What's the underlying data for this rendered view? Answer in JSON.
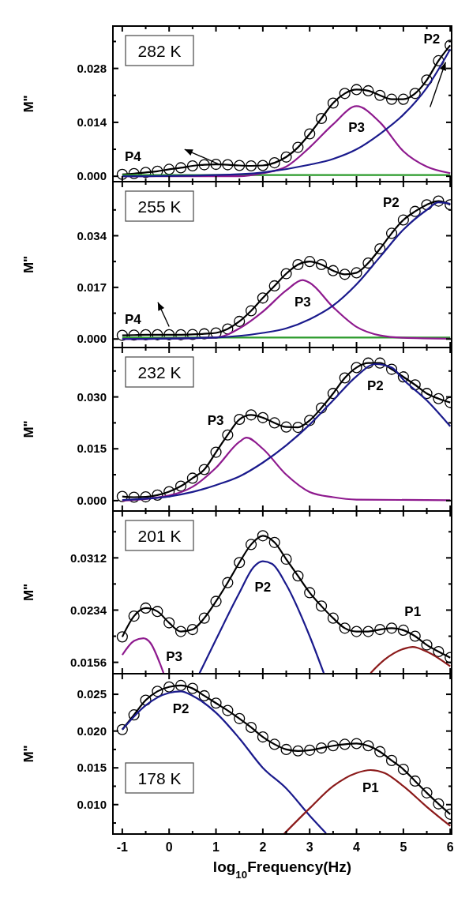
{
  "chart_data": [
    {
      "type": "line",
      "title": "282 K",
      "ylabel": "M\"",
      "xlim": [
        -1.2,
        6.03
      ],
      "ylim": [
        -0.0014,
        0.039
      ],
      "tick_labels": "y",
      "xticks": [
        -1,
        {
          "value": -0.5,
          "label": null
        },
        0,
        {
          "value": 0.5,
          "label": null
        },
        1,
        {
          "value": 1.5,
          "label": null
        },
        2,
        {
          "value": 2.5,
          "label": null
        },
        3,
        {
          "value": 3.5,
          "label": null
        },
        4,
        {
          "value": 4.5,
          "label": null
        },
        5,
        {
          "value": 5.5,
          "label": null
        },
        6
      ],
      "yticks": [
        {
          "value": 0,
          "label": "0.000"
        },
        {
          "value": 0.007,
          "label": null
        },
        {
          "value": 0.014,
          "label": "0.014"
        },
        {
          "value": 0.021,
          "label": null
        },
        {
          "value": 0.028,
          "label": "0.028"
        },
        {
          "value": 0.035,
          "label": null
        }
      ],
      "x": [
        -1,
        -0.75,
        -0.5,
        -0.25,
        0,
        0.25,
        0.5,
        0.75,
        1,
        1.25,
        1.5,
        1.75,
        2,
        2.25,
        2.5,
        2.75,
        3,
        3.25,
        3.5,
        3.75,
        4,
        4.25,
        4.5,
        4.75,
        5,
        5.25,
        5.5,
        5.75,
        6
      ],
      "series": [
        {
          "type": "scatter",
          "marker": "circle",
          "color": "#000000",
          "values": [
            0.0005,
            0.0007,
            0.001,
            0.0013,
            0.0018,
            0.0022,
            0.0027,
            0.003,
            0.0031,
            0.003,
            0.0028,
            0.0027,
            0.0028,
            0.0035,
            0.005,
            0.0075,
            0.011,
            0.015,
            0.019,
            0.0215,
            0.0225,
            0.0222,
            0.021,
            0.02,
            0.02,
            0.0215,
            0.025,
            0.03,
            0.034
          ]
        },
        {
          "color": "#000000",
          "values": [
            0.0005,
            0.0007,
            0.001,
            0.0013,
            0.0018,
            0.0022,
            0.0027,
            0.003,
            0.0031,
            0.003,
            0.0028,
            0.0027,
            0.0028,
            0.0035,
            0.005,
            0.0075,
            0.011,
            0.015,
            0.019,
            0.0215,
            0.0225,
            0.0222,
            0.021,
            0.02,
            0.02,
            0.0215,
            0.025,
            0.03,
            0.034
          ]
        },
        {
          "name": "P4",
          "color": "#2a9a2a",
          "x": [
            -1,
            6
          ],
          "values": [
            0.0003,
            0.0003
          ]
        },
        {
          "name": "P3",
          "color": "#8e1a8e",
          "x": [
            -1,
            1.5,
            2,
            2.5,
            3,
            3.5,
            4,
            4.5,
            5,
            5.5,
            6
          ],
          "values": [
            0,
            0,
            0.0008,
            0.0025,
            0.0075,
            0.0135,
            0.0182,
            0.014,
            0.0065,
            0.0025,
            0.0008
          ]
        },
        {
          "name": "P2",
          "color": "#1a1a8c",
          "x": [
            -1,
            1,
            2,
            3,
            3.5,
            4,
            4.5,
            5,
            5.5,
            6
          ],
          "values": [
            0,
            0.0003,
            0.001,
            0.003,
            0.0045,
            0.007,
            0.011,
            0.016,
            0.023,
            0.033
          ]
        }
      ]
    },
    {
      "type": "line",
      "title": "255 K",
      "ylabel": "M\"",
      "xlim": [
        -1.2,
        6.03
      ],
      "ylim": [
        -0.0028,
        0.0518
      ],
      "tick_labels": "y",
      "xticks": [
        -1,
        {
          "value": -0.5,
          "label": null
        },
        0,
        {
          "value": 0.5,
          "label": null
        },
        1,
        {
          "value": 1.5,
          "label": null
        },
        2,
        {
          "value": 2.5,
          "label": null
        },
        3,
        {
          "value": 3.5,
          "label": null
        },
        4,
        {
          "value": 4.5,
          "label": null
        },
        5,
        {
          "value": 5.5,
          "label": null
        },
        6
      ],
      "yticks": [
        {
          "value": 0,
          "label": "0.000"
        },
        {
          "value": 0.0085,
          "label": null
        },
        {
          "value": 0.017,
          "label": "0.017"
        },
        {
          "value": 0.0255,
          "label": null
        },
        {
          "value": 0.034,
          "label": "0.034"
        },
        {
          "value": 0.0425,
          "label": null
        }
      ],
      "x": [
        -1,
        -0.75,
        -0.5,
        -0.25,
        0,
        0.25,
        0.5,
        0.75,
        1,
        1.25,
        1.5,
        1.75,
        2,
        2.25,
        2.5,
        2.75,
        3,
        3.25,
        3.5,
        3.75,
        4,
        4.25,
        4.5,
        4.75,
        5,
        5.25,
        5.5,
        5.75,
        6
      ],
      "series": [
        {
          "type": "scatter",
          "marker": "circle",
          "color": "#000000",
          "values": [
            0.0012,
            0.0013,
            0.0014,
            0.0014,
            0.0014,
            0.0014,
            0.0015,
            0.0017,
            0.002,
            0.0033,
            0.0058,
            0.0093,
            0.0135,
            0.0175,
            0.0215,
            0.0245,
            0.0255,
            0.0245,
            0.0225,
            0.0213,
            0.0218,
            0.025,
            0.0297,
            0.0348,
            0.0392,
            0.042,
            0.0442,
            0.0454,
            0.0442
          ]
        },
        {
          "color": "#000000",
          "values": [
            0.0012,
            0.0013,
            0.0014,
            0.0014,
            0.0014,
            0.0014,
            0.0015,
            0.0017,
            0.002,
            0.0033,
            0.0058,
            0.0093,
            0.0135,
            0.0175,
            0.0215,
            0.0245,
            0.0255,
            0.0245,
            0.0225,
            0.0213,
            0.0218,
            0.025,
            0.0297,
            0.0348,
            0.0392,
            0.042,
            0.0442,
            0.0454,
            0.0442
          ]
        },
        {
          "name": "P4",
          "color": "#2a9a2a",
          "x": [
            -1,
            6
          ],
          "values": [
            0.0005,
            0.0005
          ]
        },
        {
          "name": "P3",
          "color": "#8e1a8e",
          "x": [
            -1,
            1,
            1.5,
            2,
            2.5,
            2.85,
            3,
            3.5,
            4,
            4.5,
            5,
            6
          ],
          "values": [
            0,
            0.0005,
            0.0035,
            0.009,
            0.016,
            0.0194,
            0.0185,
            0.0105,
            0.004,
            0.0012,
            0.0004,
            0.0001
          ]
        },
        {
          "name": "P2",
          "color": "#1a1a8c",
          "x": [
            -1,
            1,
            2,
            2.5,
            3,
            3.5,
            4,
            4.5,
            5,
            5.5,
            5.75,
            6
          ],
          "values": [
            0,
            0.0005,
            0.002,
            0.0035,
            0.0065,
            0.011,
            0.018,
            0.027,
            0.036,
            0.0425,
            0.045,
            0.0445
          ]
        }
      ]
    },
    {
      "type": "line",
      "title": "232 K",
      "ylabel": "M\"",
      "xlim": [
        -1.2,
        6.03
      ],
      "ylim": [
        -0.003,
        0.0443
      ],
      "tick_labels": "y",
      "xticks": [
        -1,
        {
          "value": -0.5,
          "label": null
        },
        0,
        {
          "value": 0.5,
          "label": null
        },
        1,
        {
          "value": 1.5,
          "label": null
        },
        2,
        {
          "value": 2.5,
          "label": null
        },
        3,
        {
          "value": 3.5,
          "label": null
        },
        4,
        {
          "value": 4.5,
          "label": null
        },
        5,
        {
          "value": 5.5,
          "label": null
        },
        6
      ],
      "yticks": [
        {
          "value": 0,
          "label": "0.000"
        },
        {
          "value": 0.0075,
          "label": null
        },
        {
          "value": 0.015,
          "label": "0.015"
        },
        {
          "value": 0.0225,
          "label": null
        },
        {
          "value": 0.03,
          "label": "0.030"
        },
        {
          "value": 0.0375,
          "label": null
        }
      ],
      "x": [
        -1,
        -0.75,
        -0.5,
        -0.25,
        0,
        0.25,
        0.5,
        0.75,
        1,
        1.25,
        1.5,
        1.75,
        2,
        2.25,
        2.5,
        2.75,
        3,
        3.25,
        3.5,
        3.75,
        4,
        4.25,
        4.5,
        4.75,
        5,
        5.25,
        5.5,
        5.75,
        6
      ],
      "series": [
        {
          "type": "scatter",
          "marker": "circle",
          "color": "#000000",
          "values": [
            0.0012,
            0.001,
            0.0011,
            0.0016,
            0.0026,
            0.0042,
            0.0065,
            0.009,
            0.014,
            0.019,
            0.0235,
            0.0248,
            0.024,
            0.0225,
            0.0213,
            0.0212,
            0.0232,
            0.0268,
            0.031,
            0.0355,
            0.0385,
            0.0398,
            0.0398,
            0.038,
            0.0358,
            0.0335,
            0.031,
            0.0295,
            0.0284
          ]
        },
        {
          "color": "#000000",
          "values": [
            0.0012,
            0.001,
            0.0011,
            0.0016,
            0.0026,
            0.0042,
            0.0065,
            0.009,
            0.014,
            0.019,
            0.0235,
            0.0248,
            0.024,
            0.0225,
            0.0213,
            0.0212,
            0.0232,
            0.0268,
            0.031,
            0.0355,
            0.0385,
            0.0398,
            0.0398,
            0.038,
            0.0358,
            0.0335,
            0.031,
            0.0295,
            0.0284
          ]
        },
        {
          "name": "P3",
          "color": "#8e1a8e",
          "x": [
            -1,
            0,
            0.5,
            1,
            1.5,
            1.65,
            2,
            2.5,
            3,
            3.5,
            4,
            6
          ],
          "values": [
            0,
            0.0015,
            0.004,
            0.0095,
            0.017,
            0.0182,
            0.015,
            0.0075,
            0.0025,
            0.001,
            0.0003,
            0.0001
          ]
        },
        {
          "name": "P2",
          "color": "#1a1a8c",
          "x": [
            -1,
            0,
            0.5,
            1,
            1.5,
            2,
            2.5,
            3,
            3.5,
            4,
            4.4,
            4.75,
            5,
            5.5,
            6
          ],
          "values": [
            0.0002,
            0.0012,
            0.0025,
            0.0045,
            0.007,
            0.011,
            0.016,
            0.022,
            0.029,
            0.036,
            0.0395,
            0.0385,
            0.035,
            0.029,
            0.0215
          ]
        }
      ]
    },
    {
      "type": "line",
      "title": "201 K",
      "ylabel": "M\"",
      "xlim": [
        -1.2,
        6.03
      ],
      "ylim": [
        0.0139,
        0.0382
      ],
      "tick_labels": "y",
      "xticks": [
        -1,
        {
          "value": -0.5,
          "label": null
        },
        0,
        {
          "value": 0.5,
          "label": null
        },
        1,
        {
          "value": 1.5,
          "label": null
        },
        2,
        {
          "value": 2.5,
          "label": null
        },
        3,
        {
          "value": 3.5,
          "label": null
        },
        4,
        {
          "value": 4.5,
          "label": null
        },
        5,
        {
          "value": 5.5,
          "label": null
        },
        6
      ],
      "yticks": [
        {
          "value": 0.0156,
          "label": "0.0156"
        },
        {
          "value": 0.0195,
          "label": null
        },
        {
          "value": 0.0234,
          "label": "0.0234"
        },
        {
          "value": 0.0273,
          "label": null
        },
        {
          "value": 0.0312,
          "label": "0.0312"
        },
        {
          "value": 0.0351,
          "label": null
        }
      ],
      "x": [
        -1,
        -0.75,
        -0.5,
        -0.25,
        0,
        0.25,
        0.5,
        0.75,
        1,
        1.25,
        1.5,
        1.75,
        2,
        2.25,
        2.5,
        2.75,
        3,
        3.25,
        3.5,
        3.75,
        4,
        4.25,
        4.5,
        4.75,
        5,
        5.25,
        5.5,
        5.75,
        6
      ],
      "series": [
        {
          "type": "scatter",
          "marker": "circle",
          "color": "#000000",
          "values": [
            0.0194,
            0.0225,
            0.0237,
            0.0232,
            0.0215,
            0.0202,
            0.0205,
            0.0222,
            0.0247,
            0.0275,
            0.0305,
            0.0332,
            0.0345,
            0.0335,
            0.031,
            0.0285,
            0.026,
            0.024,
            0.0222,
            0.0207,
            0.0202,
            0.0202,
            0.0205,
            0.0207,
            0.0204,
            0.0195,
            0.0182,
            0.0172,
            0.0163
          ]
        },
        {
          "color": "#000000",
          "values": [
            0.0194,
            0.0225,
            0.0237,
            0.0232,
            0.0215,
            0.0202,
            0.0205,
            0.0222,
            0.0247,
            0.0275,
            0.0305,
            0.0332,
            0.0345,
            0.0335,
            0.031,
            0.0285,
            0.026,
            0.024,
            0.0222,
            0.0207,
            0.0202,
            0.0202,
            0.0205,
            0.0207,
            0.0204,
            0.0195,
            0.0182,
            0.0172,
            0.0163
          ]
        },
        {
          "name": "P3",
          "color": "#8e1a8e",
          "x": [
            -1,
            -0.75,
            -0.55,
            -0.4,
            -0.2,
            -0.12
          ],
          "values": [
            0.0167,
            0.0188,
            0.0192,
            0.0185,
            0.0155,
            0.014
          ]
        },
        {
          "name": "P2",
          "color": "#1a1a8c",
          "x": [
            0.65,
            1,
            1.5,
            1.8,
            2,
            2.2,
            2.5,
            3,
            3.3
          ],
          "values": [
            0.014,
            0.019,
            0.026,
            0.0298,
            0.0307,
            0.0303,
            0.0272,
            0.0195,
            0.014
          ]
        },
        {
          "name": "P1",
          "color": "#8b1a1a",
          "x": [
            4.3,
            4.6,
            5,
            5.2,
            5.5,
            6
          ],
          "values": [
            0.014,
            0.016,
            0.0176,
            0.0179,
            0.0172,
            0.015
          ]
        }
      ]
    },
    {
      "type": "line",
      "title": "178 K",
      "ylabel": "M\"",
      "xlabel": "log$_{10}$Frequency(Hz)",
      "xlim": [
        -1.2,
        6.03
      ],
      "ylim": [
        0.006,
        0.0278
      ],
      "xticks": [
        -1,
        {
          "value": -0.5,
          "label": null
        },
        0,
        {
          "value": 0.5,
          "label": null
        },
        1,
        {
          "value": 1.5,
          "label": null
        },
        2,
        {
          "value": 2.5,
          "label": null
        },
        3,
        {
          "value": 3.5,
          "label": null
        },
        4,
        {
          "value": 4.5,
          "label": null
        },
        5,
        {
          "value": 5.5,
          "label": null
        },
        6
      ],
      "yticks": [
        {
          "value": 0.0075,
          "label": null
        },
        {
          "value": 0.01,
          "label": "0.010"
        },
        {
          "value": 0.0125,
          "label": null
        },
        {
          "value": 0.015,
          "label": "0.015"
        },
        {
          "value": 0.0175,
          "label": null
        },
        {
          "value": 0.02,
          "label": "0.020"
        },
        {
          "value": 0.0225,
          "label": null
        },
        {
          "value": 0.025,
          "label": "0.025"
        }
      ],
      "x": [
        -1,
        -0.75,
        -0.5,
        -0.25,
        0,
        0.25,
        0.5,
        0.75,
        1,
        1.25,
        1.5,
        1.75,
        2,
        2.25,
        2.5,
        2.75,
        3,
        3.25,
        3.5,
        3.75,
        4,
        4.25,
        4.5,
        4.75,
        5,
        5.25,
        5.5,
        5.75,
        6
      ],
      "series": [
        {
          "type": "scatter",
          "marker": "circle",
          "color": "#000000",
          "values": [
            0.0202,
            0.0222,
            0.0242,
            0.0254,
            0.026,
            0.0262,
            0.0258,
            0.0248,
            0.0238,
            0.0228,
            0.0217,
            0.0205,
            0.0192,
            0.0182,
            0.0175,
            0.0173,
            0.0174,
            0.0177,
            0.018,
            0.0182,
            0.0183,
            0.018,
            0.0172,
            0.016,
            0.0148,
            0.0132,
            0.0116,
            0.0101,
            0.0087
          ]
        },
        {
          "color": "#000000",
          "values": [
            0.0202,
            0.0222,
            0.0242,
            0.0254,
            0.026,
            0.0262,
            0.0258,
            0.0248,
            0.0238,
            0.0228,
            0.0217,
            0.0205,
            0.0192,
            0.0182,
            0.0175,
            0.0173,
            0.0174,
            0.0177,
            0.018,
            0.0182,
            0.0183,
            0.018,
            0.0172,
            0.016,
            0.0148,
            0.0132,
            0.0116,
            0.0101,
            0.0087
          ]
        },
        {
          "name": "P2",
          "color": "#1a1a8c",
          "x": [
            -1,
            -0.5,
            0,
            0.25,
            0.5,
            1,
            1.5,
            2,
            2.5,
            3,
            3.35
          ],
          "values": [
            0.0202,
            0.0235,
            0.0252,
            0.0254,
            0.0248,
            0.0225,
            0.019,
            0.015,
            0.0122,
            0.0085,
            0.0061
          ]
        },
        {
          "name": "P1",
          "color": "#8b1a1a",
          "x": [
            2.45,
            3,
            3.5,
            4,
            4.3,
            4.6,
            5,
            5.5,
            6
          ],
          "values": [
            0.006,
            0.0095,
            0.0125,
            0.0143,
            0.0147,
            0.0143,
            0.0125,
            0.0097,
            0.0071
          ]
        }
      ]
    }
  ]
}
